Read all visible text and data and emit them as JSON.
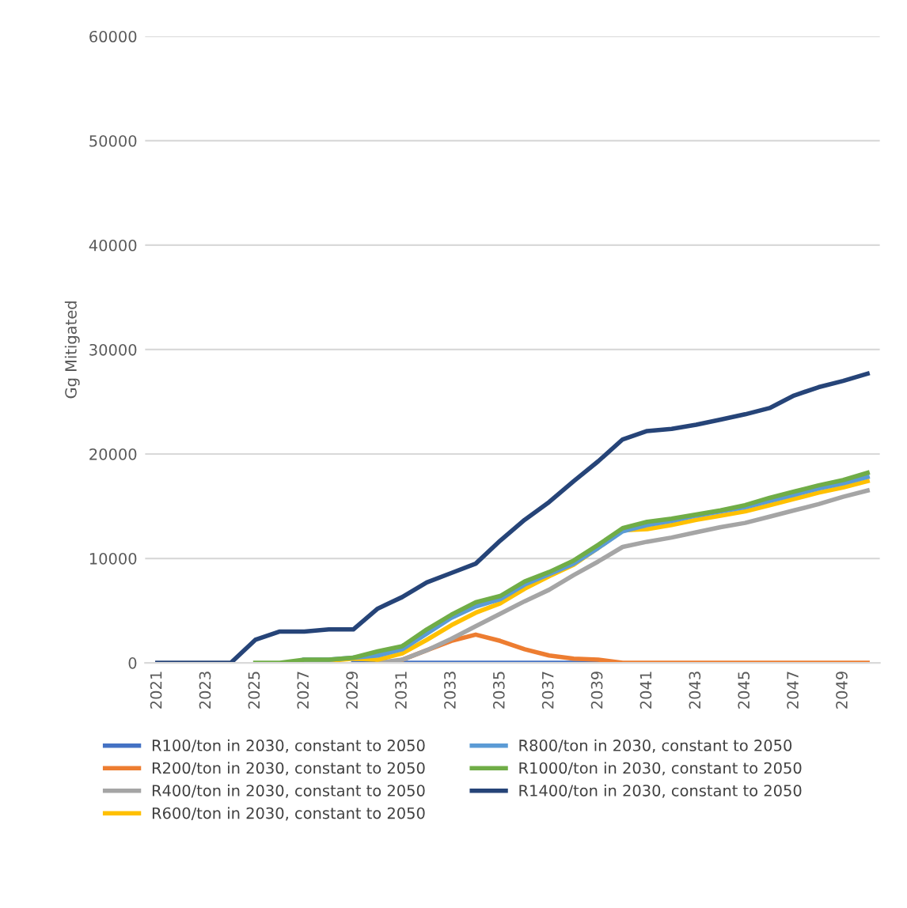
{
  "chart_data": {
    "type": "line",
    "ylabel": "Gg Mitigated",
    "categories": [
      "2021",
      null,
      "2023",
      null,
      "2025",
      null,
      "2027",
      null,
      "2029",
      null,
      "2031",
      null,
      "2033",
      null,
      "2035",
      null,
      "2037",
      null,
      "2039",
      null,
      "2041",
      null,
      "2043",
      null,
      "2045",
      null,
      "2047",
      null,
      "2049",
      null
    ],
    "ylim": [
      0,
      60000
    ],
    "yticks": [
      0,
      10000,
      20000,
      30000,
      40000,
      50000,
      60000
    ],
    "grid": "y",
    "legend": "bottom",
    "marker": "none",
    "line_style": "solid",
    "series": [
      {
        "name": "R100/ton in 2030, constant to 2050",
        "color": "#4472c4",
        "values": [
          null,
          null,
          null,
          null,
          null,
          null,
          null,
          null,
          0,
          0,
          0,
          0,
          0,
          0,
          0,
          0,
          0,
          0,
          0,
          null,
          null,
          null,
          null,
          null,
          null,
          null,
          null,
          null,
          null,
          null
        ]
      },
      {
        "name": "R200/ton in 2030, constant to 2050",
        "color": "#ed7d31",
        "values": [
          null,
          null,
          null,
          null,
          null,
          null,
          null,
          null,
          null,
          null,
          300,
          1200,
          2100,
          2700,
          2100,
          1300,
          700,
          400,
          300,
          0,
          0,
          0,
          0,
          0,
          0,
          0,
          0,
          0,
          0,
          0
        ]
      },
      {
        "name": "R400/ton in 2030, constant to 2050",
        "color": "#a5a5a5",
        "values": [
          null,
          null,
          null,
          null,
          null,
          null,
          null,
          null,
          null,
          0,
          300,
          1200,
          2300,
          3500,
          4700,
          5900,
          7000,
          8400,
          9700,
          11100,
          11600,
          12000,
          12500,
          13000,
          13400,
          14000,
          14600,
          15200,
          15900,
          16500
        ]
      },
      {
        "name": "R600/ton in 2030, constant to 2050",
        "color": "#ffc000",
        "values": [
          null,
          null,
          null,
          null,
          null,
          null,
          200,
          200,
          400,
          300,
          900,
          2200,
          3600,
          4800,
          5700,
          7100,
          8300,
          9400,
          11000,
          12700,
          12800,
          13200,
          13700,
          14100,
          14500,
          15100,
          15700,
          16300,
          16800,
          17400
        ]
      },
      {
        "name": "R800/ton in 2030, constant to 2050",
        "color": "#5b9bd5",
        "values": [
          null,
          null,
          null,
          null,
          null,
          null,
          300,
          300,
          500,
          700,
          1300,
          2800,
          4300,
          5400,
          6100,
          7500,
          8500,
          9500,
          11000,
          12600,
          13200,
          13600,
          14100,
          14500,
          14900,
          15500,
          16100,
          16700,
          17200,
          17800
        ]
      },
      {
        "name": "R1000/ton in 2030, constant to 2050",
        "color": "#70ad47",
        "values": [
          null,
          null,
          null,
          null,
          0,
          0,
          300,
          300,
          500,
          1100,
          1600,
          3200,
          4600,
          5800,
          6400,
          7800,
          8700,
          9800,
          11300,
          12900,
          13500,
          13800,
          14200,
          14600,
          15100,
          15800,
          16400,
          17000,
          17500,
          18200
        ]
      },
      {
        "name": "R1400/ton in 2030, constant to 2050",
        "color": "#264478",
        "values": [
          0,
          0,
          0,
          0,
          2200,
          3000,
          3000,
          3200,
          3200,
          5200,
          6300,
          7700,
          8600,
          9500,
          11700,
          13700,
          15400,
          17400,
          19300,
          21400,
          22200,
          22400,
          22800,
          23300,
          23800,
          24400,
          25600,
          26400,
          27000,
          27700
        ]
      }
    ]
  }
}
